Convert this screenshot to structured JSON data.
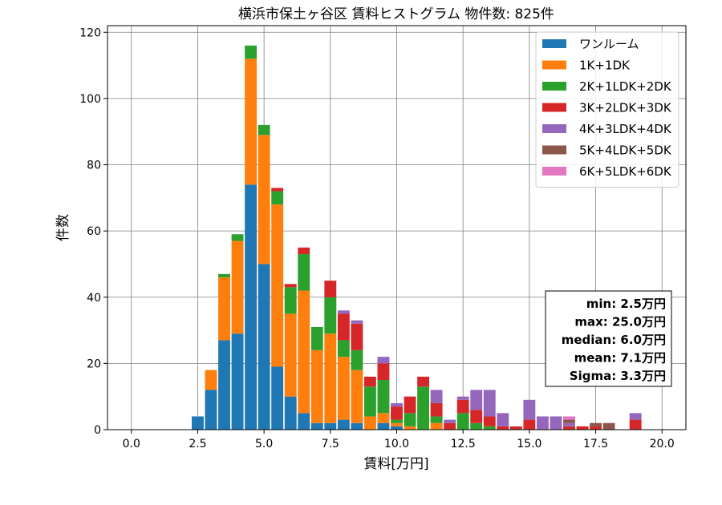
{
  "chart_data": {
    "type": "bar",
    "stacked": true,
    "title": "横浜市保土ヶ谷区 賃料ヒストグラム  物件数: 825件",
    "xlabel": "賃料[万円]",
    "ylabel": "件数",
    "xlim": [
      -0.9,
      20.9
    ],
    "ylim": [
      0,
      122
    ],
    "xticks": [
      0.0,
      2.5,
      5.0,
      7.5,
      10.0,
      12.5,
      15.0,
      17.5,
      20.0
    ],
    "xtick_labels": [
      "0.0",
      "2.5",
      "5.0",
      "7.5",
      "10.0",
      "12.5",
      "15.0",
      "17.5",
      "20.0"
    ],
    "yticks": [
      0,
      20,
      40,
      60,
      80,
      100,
      120
    ],
    "ytick_labels": [
      "0",
      "20",
      "40",
      "60",
      "80",
      "100",
      "120"
    ],
    "grid": true,
    "legend_position": "top-right",
    "bin_width": 0.5,
    "bin_starts": [
      2.25,
      2.75,
      3.25,
      3.75,
      4.25,
      4.75,
      5.25,
      5.75,
      6.25,
      6.75,
      7.25,
      7.75,
      8.25,
      8.75,
      9.25,
      9.75,
      10.25,
      10.75,
      11.25,
      11.75,
      12.25,
      12.75,
      13.25,
      13.75,
      14.25,
      14.75,
      15.25,
      15.75,
      16.25,
      16.75,
      17.25,
      17.75,
      18.25,
      18.75,
      19.25
    ],
    "series": [
      {
        "name": "ワンルーム",
        "color": "#1f77b4",
        "values": [
          4,
          12,
          27,
          29,
          74,
          50,
          19,
          10,
          5,
          2,
          2,
          3,
          2,
          0,
          2,
          1,
          0,
          0,
          0,
          0,
          0,
          0,
          0,
          0,
          0,
          0,
          0,
          0,
          0,
          0,
          0,
          0,
          0,
          0,
          0
        ]
      },
      {
        "name": "1K+1DK",
        "color": "#ff7f0e",
        "values": [
          0,
          6,
          19,
          28,
          38,
          39,
          49,
          25,
          37,
          22,
          27,
          19,
          16,
          4,
          3,
          1,
          1,
          0,
          2,
          0,
          0,
          0,
          0,
          0,
          0,
          0,
          0,
          0,
          0,
          0,
          0,
          0,
          0,
          0,
          0
        ]
      },
      {
        "name": "2K+1LDK+2DK",
        "color": "#2ca02c",
        "values": [
          0,
          0,
          1,
          2,
          4,
          3,
          4,
          8,
          11,
          7,
          11,
          5,
          6,
          9,
          10,
          1,
          4,
          13,
          2,
          0,
          5,
          2,
          1,
          0,
          0,
          0,
          0,
          0,
          0,
          0,
          0,
          0,
          0,
          0,
          0
        ]
      },
      {
        "name": "3K+2LDK+3DK",
        "color": "#d62728",
        "values": [
          0,
          0,
          0,
          0,
          0,
          0,
          1,
          1,
          2,
          0,
          5,
          8,
          8,
          3,
          5,
          4,
          5,
          3,
          4,
          2,
          4,
          4,
          3,
          1,
          1,
          3,
          0,
          0,
          1,
          1,
          1,
          0,
          0,
          3,
          0
        ]
      },
      {
        "name": "4K+3LDK+4DK",
        "color": "#9467bd",
        "values": [
          0,
          0,
          0,
          0,
          0,
          0,
          0,
          0,
          0,
          0,
          0,
          1,
          1,
          0,
          2,
          1,
          0,
          0,
          4,
          1,
          1,
          6,
          8,
          4,
          0,
          6,
          4,
          4,
          1,
          0,
          0,
          0,
          0,
          2,
          0
        ]
      },
      {
        "name": "5K+4LDK+5DK",
        "color": "#8c564b",
        "values": [
          0,
          0,
          0,
          0,
          0,
          0,
          0,
          0,
          0,
          0,
          0,
          0,
          0,
          0,
          0,
          0,
          0,
          0,
          0,
          0,
          0,
          0,
          0,
          0,
          0,
          0,
          0,
          0,
          1,
          0,
          1,
          2,
          0,
          0,
          0
        ]
      },
      {
        "name": "6K+5LDK+6DK",
        "color": "#e377c2",
        "values": [
          0,
          0,
          0,
          0,
          0,
          0,
          0,
          0,
          0,
          0,
          0,
          0,
          0,
          0,
          0,
          0,
          0,
          0,
          0,
          0,
          0,
          0,
          0,
          0,
          0,
          0,
          0,
          0,
          1,
          0,
          0,
          0,
          0,
          0,
          0
        ]
      }
    ],
    "annotations": [
      "min: 2.5万円",
      "max: 25.0万円",
      "median: 6.0万円",
      "mean: 7.1万円",
      "Sigma: 3.3万円"
    ]
  }
}
